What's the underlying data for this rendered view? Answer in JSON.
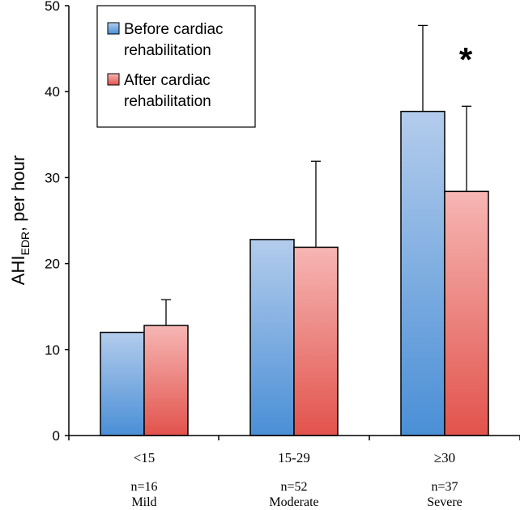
{
  "chart_data": {
    "type": "bar",
    "categories": [
      "<15",
      "15-29",
      "≥30"
    ],
    "category_counts": [
      "n=16",
      "n=52",
      "n=37"
    ],
    "category_severity": [
      "Mild",
      "Moderate",
      "Severe"
    ],
    "series": [
      {
        "name": "Before cardiac rehabilitation",
        "legend_lines": [
          "Before cardiac",
          "rehabilitation"
        ],
        "values": [
          12.0,
          22.8,
          37.7
        ],
        "error_upper": [
          null,
          null,
          47.7
        ],
        "color_top": "#b3ccec",
        "color_bottom": "#4a8fd6"
      },
      {
        "name": "After cardiac rehabilitation",
        "legend_lines": [
          "After cardiac",
          "rehabilitation"
        ],
        "values": [
          12.8,
          21.9,
          28.4
        ],
        "error_upper": [
          15.8,
          31.9,
          38.3
        ],
        "color_top": "#f6b6b4",
        "color_bottom": "#e2534c"
      }
    ],
    "ylabel_main": "AHI",
    "ylabel_sub": "EDR",
    "ylabel_rest": ", per hour",
    "ylim": [
      0,
      50
    ],
    "yticks": [
      "0",
      "10",
      "20",
      "30",
      "40",
      "50"
    ],
    "grid": false,
    "legend_position": "top-left",
    "annotation": "*"
  }
}
